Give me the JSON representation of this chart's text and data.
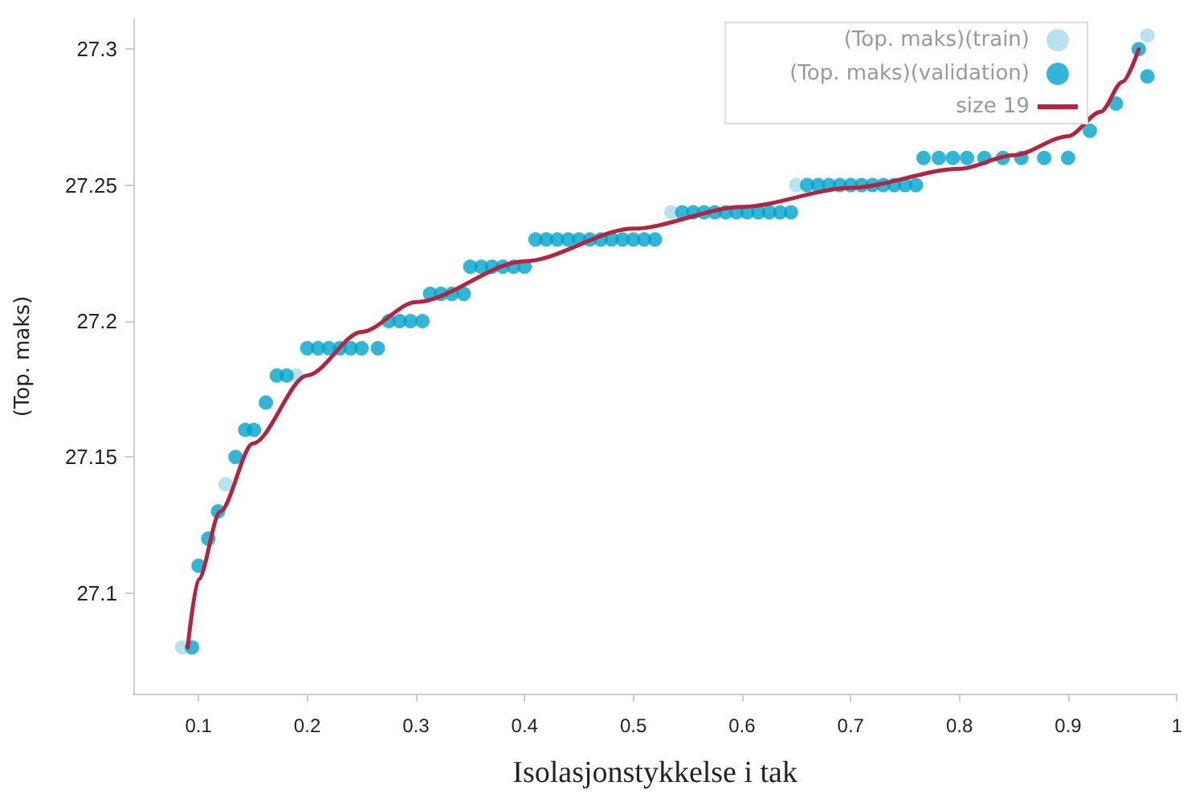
{
  "chart_data": {
    "type": "scatter",
    "xlabel": "Isolasjonstykkelse i tak",
    "ylabel": "(Top. maks)",
    "xlim": [
      0.04,
      1
    ],
    "ylim": [
      27.063,
      27.311
    ],
    "xticks": [
      0.1,
      0.2,
      0.3,
      0.4,
      0.5,
      0.6,
      0.7,
      0.8,
      0.9,
      1
    ],
    "yticks": [
      27.1,
      27.15,
      27.2,
      27.25,
      27.3
    ],
    "grid": false,
    "legend": "top right",
    "marker": "circle",
    "series": [
      {
        "name": "(Top. maks)(train)",
        "type": "scatter",
        "color": "#a9d9ea",
        "x": [
          0.085,
          0.125,
          0.19,
          0.535,
          0.65,
          0.973
        ],
        "values": [
          27.08,
          27.14,
          27.18,
          27.24,
          27.25,
          27.305
        ]
      },
      {
        "name": "(Top. maks)(validation)",
        "type": "scatter",
        "color": "#00a3cc",
        "x": [
          0.094,
          0.1,
          0.109,
          0.118,
          0.134,
          0.143,
          0.151,
          0.162,
          0.172,
          0.181,
          0.2,
          0.21,
          0.22,
          0.23,
          0.24,
          0.25,
          0.265,
          0.275,
          0.285,
          0.295,
          0.306,
          0.313,
          0.323,
          0.333,
          0.344,
          0.35,
          0.36,
          0.37,
          0.38,
          0.39,
          0.4,
          0.41,
          0.42,
          0.43,
          0.44,
          0.45,
          0.46,
          0.47,
          0.48,
          0.49,
          0.5,
          0.51,
          0.52,
          0.545,
          0.555,
          0.565,
          0.575,
          0.585,
          0.595,
          0.605,
          0.615,
          0.625,
          0.635,
          0.645,
          0.66,
          0.67,
          0.68,
          0.69,
          0.7,
          0.71,
          0.72,
          0.73,
          0.74,
          0.75,
          0.76,
          0.767,
          0.781,
          0.794,
          0.807,
          0.823,
          0.84,
          0.857,
          0.878,
          0.9,
          0.92,
          0.944,
          0.965,
          0.973
        ],
        "values": [
          27.08,
          27.11,
          27.12,
          27.13,
          27.15,
          27.16,
          27.16,
          27.17,
          27.18,
          27.18,
          27.19,
          27.19,
          27.19,
          27.19,
          27.19,
          27.19,
          27.19,
          27.2,
          27.2,
          27.2,
          27.2,
          27.21,
          27.21,
          27.21,
          27.21,
          27.22,
          27.22,
          27.22,
          27.22,
          27.22,
          27.22,
          27.23,
          27.23,
          27.23,
          27.23,
          27.23,
          27.23,
          27.23,
          27.23,
          27.23,
          27.23,
          27.23,
          27.23,
          27.24,
          27.24,
          27.24,
          27.24,
          27.24,
          27.24,
          27.24,
          27.24,
          27.24,
          27.24,
          27.24,
          27.25,
          27.25,
          27.25,
          27.25,
          27.25,
          27.25,
          27.25,
          27.25,
          27.25,
          27.25,
          27.25,
          27.26,
          27.26,
          27.26,
          27.26,
          27.26,
          27.26,
          27.26,
          27.26,
          27.26,
          27.27,
          27.28,
          27.3,
          27.29
        ]
      },
      {
        "name": "size 19",
        "type": "line",
        "marker": "none",
        "color": "#b3243f",
        "x": [
          0.09,
          0.1,
          0.12,
          0.15,
          0.2,
          0.25,
          0.3,
          0.4,
          0.5,
          0.6,
          0.7,
          0.8,
          0.85,
          0.9,
          0.93,
          0.95,
          0.965
        ],
        "values": [
          27.08,
          27.105,
          27.13,
          27.155,
          27.18,
          27.196,
          27.207,
          27.222,
          27.234,
          27.242,
          27.249,
          27.256,
          27.261,
          27.268,
          27.277,
          27.288,
          27.3
        ]
      }
    ]
  }
}
